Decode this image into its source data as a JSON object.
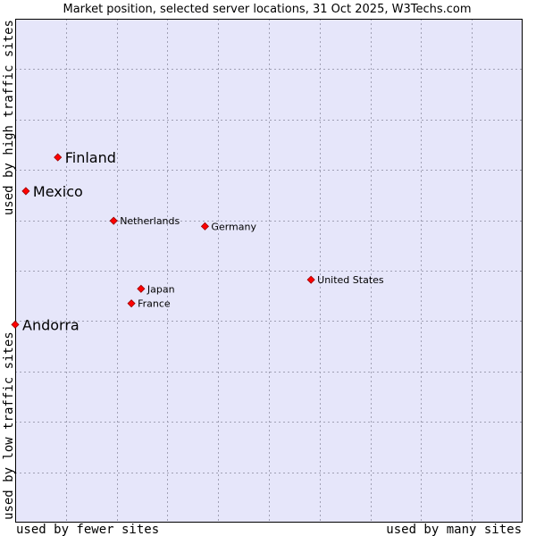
{
  "chart_data": {
    "type": "scatter",
    "title": "Market position, selected server locations, 31 Oct 2025, W3Techs.com",
    "xlabel_left": "used by fewer sites",
    "xlabel_right": "used by many sites",
    "ylabel_bottom": "used by low traffic sites",
    "ylabel_top": "used by high traffic sites",
    "xlim": [
      0,
      100
    ],
    "ylim": [
      0,
      100
    ],
    "grid": true,
    "grid_divisions": 10,
    "colors": {
      "plot_background": "#e6e6fa",
      "grid_line": "#a0a0b4",
      "point": "#ff0000",
      "point_outline": "#990000",
      "frame": "#000000"
    },
    "points": [
      {
        "label": "Finland",
        "x": 8.4,
        "y": 72.5,
        "emphasis": true
      },
      {
        "label": "Mexico",
        "x": 2.1,
        "y": 65.8,
        "emphasis": true
      },
      {
        "label": "Netherlands",
        "x": 19.4,
        "y": 59.9,
        "emphasis": false
      },
      {
        "label": "Germany",
        "x": 37.4,
        "y": 58.8,
        "emphasis": false
      },
      {
        "label": "United States",
        "x": 58.3,
        "y": 48.2,
        "emphasis": false
      },
      {
        "label": "Japan",
        "x": 24.8,
        "y": 46.4,
        "emphasis": false
      },
      {
        "label": "France",
        "x": 22.9,
        "y": 43.5,
        "emphasis": false
      },
      {
        "label": "Andorra",
        "x": 0.0,
        "y": 39.3,
        "emphasis": true
      }
    ]
  }
}
